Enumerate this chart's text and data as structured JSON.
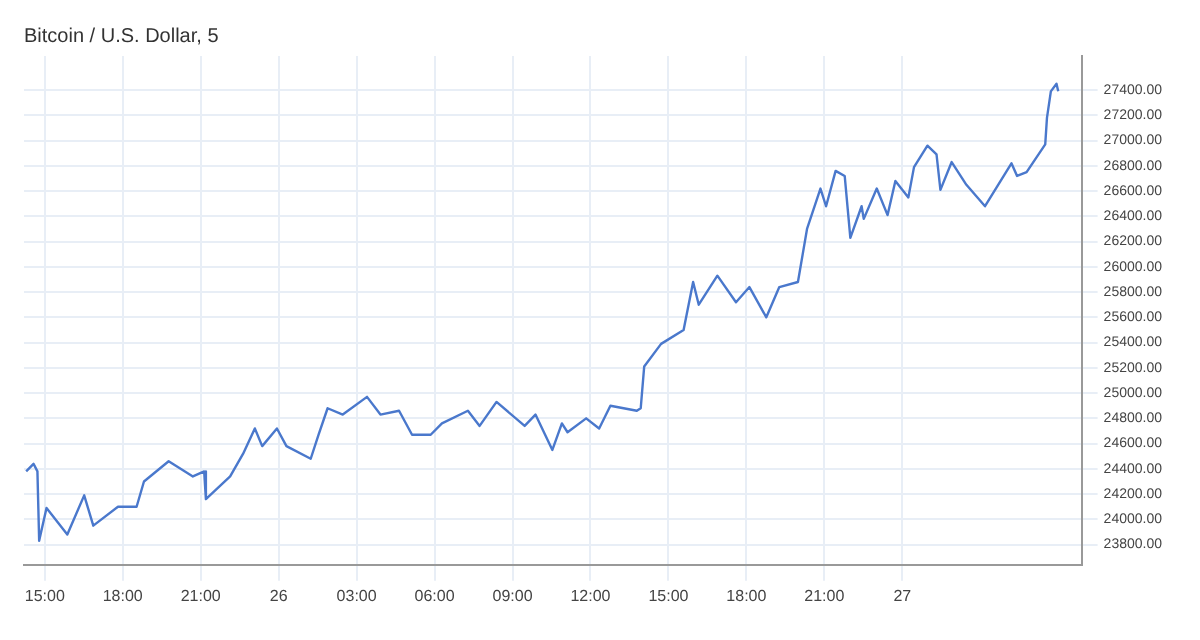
{
  "chart_data": {
    "type": "line",
    "title": "Bitcoin / U.S. Dollar, 5",
    "legend": false,
    "grid": true,
    "marker": "none",
    "xlim": [
      "--12-25T14:12",
      "--12-27T06:54"
    ],
    "xticks": [
      {
        "value": "--12-25T15:00",
        "label": "15:00"
      },
      {
        "value": "--12-25T18:00",
        "label": "18:00"
      },
      {
        "value": "--12-25T21:00",
        "label": "21:00"
      },
      {
        "value": "--12-26T00:00",
        "label": "26"
      },
      {
        "value": "--12-26T03:00",
        "label": "03:00"
      },
      {
        "value": "--12-26T06:00",
        "label": "06:00"
      },
      {
        "value": "--12-26T09:00",
        "label": "09:00"
      },
      {
        "value": "--12-26T12:00",
        "label": "12:00"
      },
      {
        "value": "--12-26T15:00",
        "label": "15:00"
      },
      {
        "value": "--12-26T18:00",
        "label": "18:00"
      },
      {
        "value": "--12-26T21:00",
        "label": "21:00"
      },
      {
        "value": "--12-27T00:00",
        "label": "27"
      }
    ],
    "ylim": [
      23640,
      27670
    ],
    "yticks": [
      {
        "value": 23800,
        "label": "23800.00"
      },
      {
        "value": 24000,
        "label": "24000.00"
      },
      {
        "value": 24200,
        "label": "24200.00"
      },
      {
        "value": 24400,
        "label": "24400.00"
      },
      {
        "value": 24600,
        "label": "24600.00"
      },
      {
        "value": 24800,
        "label": "24800.00"
      },
      {
        "value": 25000,
        "label": "25000.00"
      },
      {
        "value": 25200,
        "label": "25200.00"
      },
      {
        "value": 25400,
        "label": "25400.00"
      },
      {
        "value": 25600,
        "label": "25600.00"
      },
      {
        "value": 25800,
        "label": "25800.00"
      },
      {
        "value": 26000,
        "label": "26000.00"
      },
      {
        "value": 26200,
        "label": "26200.00"
      },
      {
        "value": 26400,
        "label": "26400.00"
      },
      {
        "value": 26600,
        "label": "26600.00"
      },
      {
        "value": 26800,
        "label": "26800.00"
      },
      {
        "value": 27000,
        "label": "27000.00"
      },
      {
        "value": 27200,
        "label": "27200.00"
      },
      {
        "value": 27400,
        "label": "27400.00"
      }
    ],
    "series": [
      {
        "color": "#4a78cc",
        "x": [
          "--12-25T14:17",
          "--12-25T14:34",
          "--12-25T14:43",
          "--12-25T14:47",
          "--12-25T15:04",
          "--12-25T15:52",
          "--12-25T16:31",
          "--12-25T16:52",
          "--12-25T17:49",
          "--12-25T18:32",
          "--12-25T18:49",
          "--12-25T19:46",
          "--12-25T20:42",
          "--12-25T21:08",
          "--12-25T21:12",
          "--12-25T22:08",
          "--12-25T22:38",
          "--12-25T23:05",
          "--12-25T23:22",
          "--12-25T23:56",
          "--12-26T00:18",
          "--12-26T01:14",
          "--12-26T01:32",
          "--12-26T01:53",
          "--12-26T02:28",
          "--12-26T03:24",
          "--12-26T03:55",
          "--12-26T04:38",
          "--12-26T05:08",
          "--12-26T05:51",
          "--12-26T06:17",
          "--12-26T07:17",
          "--12-26T07:44",
          "--12-26T08:23",
          "--12-26T09:28",
          "--12-26T09:53",
          "--12-26T10:32",
          "--12-26T10:54",
          "--12-26T11:07",
          "--12-26T11:50",
          "--12-26T12:20",
          "--12-26T12:46",
          "--12-26T13:47",
          "--12-26T13:56",
          "--12-26T14:04",
          "--12-26T14:43",
          "--12-26T15:35",
          "--12-26T15:57",
          "--12-26T16:10",
          "--12-26T16:53",
          "--12-26T17:36",
          "--12-26T18:07",
          "--12-26T18:46",
          "--12-26T19:16",
          "--12-26T19:59",
          "--12-26T20:20",
          "--12-26T20:51",
          "--12-26T21:04",
          "--12-26T21:26",
          "--12-26T21:47",
          "--12-26T22:00",
          "--12-26T22:26",
          "--12-26T22:31",
          "--12-26T23:01",
          "--12-26T23:26",
          "--12-26T23:44",
          "--12-27T00:14",
          "--12-27T00:27",
          "--12-27T00:58",
          "--12-27T01:19",
          "--12-27T01:28",
          "--12-27T01:54",
          "--12-27T02:28",
          "--12-27T03:11",
          "--12-27T04:12",
          "--12-27T04:25",
          "--12-27T04:47",
          "--12-27T05:30",
          "--12-27T05:34",
          "--12-27T05:43",
          "--12-27T05:56",
          "--12-27T06:00"
        ],
        "values": [
          24380,
          24440,
          24380,
          23830,
          24090,
          23880,
          24190,
          23950,
          24100,
          24100,
          24300,
          24460,
          24340,
          24380,
          24160,
          24340,
          24520,
          24720,
          24580,
          24720,
          24580,
          24480,
          24670,
          24880,
          24830,
          24970,
          24830,
          24860,
          24670,
          24670,
          24760,
          24860,
          24740,
          24930,
          24740,
          24830,
          24550,
          24760,
          24690,
          24800,
          24720,
          24900,
          24860,
          24880,
          25210,
          25390,
          25500,
          25880,
          25700,
          25930,
          25720,
          25840,
          25600,
          25840,
          25880,
          26300,
          26620,
          26480,
          26760,
          26720,
          26230,
          26480,
          26380,
          26620,
          26410,
          26680,
          26550,
          26790,
          26960,
          26890,
          26610,
          26830,
          26650,
          26480,
          26820,
          26720,
          26750,
          26970,
          27180,
          27390,
          27450,
          27390
        ]
      }
    ]
  }
}
